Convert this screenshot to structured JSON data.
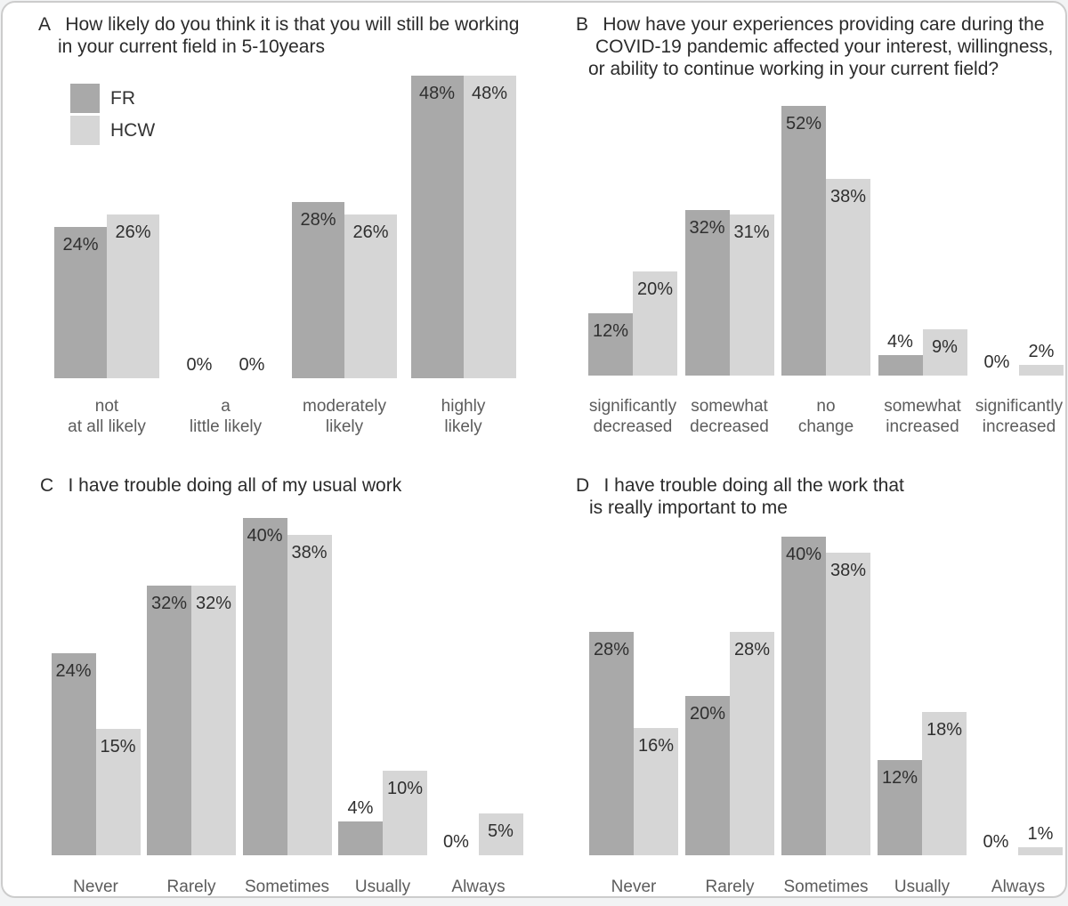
{
  "figure": {
    "legend": {
      "items": [
        {
          "label": "FR",
          "color": "#a9a9a9"
        },
        {
          "label": "HCW",
          "color": "#d6d6d6"
        }
      ]
    }
  },
  "chart_data": [
    {
      "panel_label": "A",
      "type": "bar",
      "title": "How likely do you think it is that you will still be working in your current field in 5-10years",
      "title_lines": [
        "How likely do you think it is that you will still be working",
        "in your current field in 5-10years"
      ],
      "categories": [
        "not\nat all likely",
        "a\nlittle likely",
        "moderately\nlikely",
        "highly\nlikely"
      ],
      "series": [
        {
          "name": "FR",
          "color": "#a9a9a9",
          "values": [
            24,
            0,
            28,
            48
          ]
        },
        {
          "name": "HCW",
          "color": "#d6d6d6",
          "values": [
            26,
            0,
            26,
            48
          ]
        }
      ],
      "value_suffix": "%",
      "ylim": [
        0,
        48
      ],
      "grid": false,
      "legend_position": "top-left"
    },
    {
      "panel_label": "B",
      "type": "bar",
      "title": "How have your experiences providing care during the COVID-19 pandemic affected your interest, willingness, or ability to continue working in your current field?",
      "title_lines": [
        "How have your experiences providing care during the",
        "COVID-19 pandemic affected your interest, willingness,",
        "or ability to continue working in your current field?"
      ],
      "categories": [
        "significantly\ndecreased",
        "somewhat\ndecreased",
        "no\nchange",
        "somewhat\nincreased",
        "significantly\nincreased"
      ],
      "series": [
        {
          "name": "FR",
          "color": "#a9a9a9",
          "values": [
            12,
            32,
            52,
            4,
            0
          ]
        },
        {
          "name": "HCW",
          "color": "#d6d6d6",
          "values": [
            20,
            31,
            38,
            9,
            2
          ]
        }
      ],
      "value_suffix": "%",
      "ylim": [
        0,
        52
      ],
      "grid": false
    },
    {
      "panel_label": "C",
      "type": "bar",
      "title": "I have trouble doing all of my usual work",
      "title_lines": [
        "I have trouble doing all of my usual work"
      ],
      "categories": [
        "Never",
        "Rarely",
        "Sometimes",
        "Usually",
        "Always"
      ],
      "series": [
        {
          "name": "FR",
          "color": "#a9a9a9",
          "values": [
            24,
            32,
            40,
            4,
            0
          ]
        },
        {
          "name": "HCW",
          "color": "#d6d6d6",
          "values": [
            15,
            32,
            38,
            10,
            5
          ]
        }
      ],
      "value_suffix": "%",
      "ylim": [
        0,
        40
      ],
      "grid": false
    },
    {
      "panel_label": "D",
      "type": "bar",
      "title": "I have trouble doing all the work that is really important to me",
      "title_lines": [
        "I have trouble doing all the work that",
        "is really important to me"
      ],
      "categories": [
        "Never",
        "Rarely",
        "Sometimes",
        "Usually",
        "Always"
      ],
      "series": [
        {
          "name": "FR",
          "color": "#a9a9a9",
          "values": [
            28,
            20,
            40,
            12,
            0
          ]
        },
        {
          "name": "HCW",
          "color": "#d6d6d6",
          "values": [
            16,
            28,
            38,
            18,
            1
          ]
        }
      ],
      "value_suffix": "%",
      "ylim": [
        0,
        40
      ],
      "grid": false
    }
  ]
}
